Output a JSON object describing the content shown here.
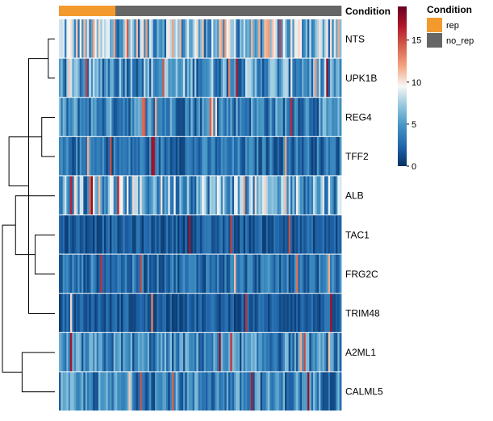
{
  "chart_data": {
    "type": "heatmap",
    "rows": [
      "NTS",
      "UPK1B",
      "REG4",
      "TFF2",
      "ALB",
      "TAC1",
      "FRG2C",
      "TRIM48",
      "A2ML1",
      "CALML5"
    ],
    "annotation": {
      "label": "Condition",
      "groups": [
        {
          "name": "rep",
          "color": "#F39A2F",
          "count": 30
        },
        {
          "name": "no_rep",
          "color": "#666666",
          "count": 120
        }
      ]
    },
    "row_dendrogram": [
      [
        0,
        1
      ],
      [
        2,
        3
      ],
      [
        5,
        6
      ],
      [
        10,
        7
      ],
      [
        8,
        9
      ],
      [
        12,
        4
      ],
      [
        13,
        11
      ],
      [
        14,
        15
      ]
    ],
    "row_mean_values": [
      7,
      5,
      4,
      3,
      6,
      2,
      3,
      2,
      4,
      4
    ],
    "color_scale": {
      "colors": [
        "#053061",
        "#2166AC",
        "#4393C3",
        "#92C5DE",
        "#F7F7F7",
        "#F4A582",
        "#D6604D",
        "#B2182B",
        "#67001F"
      ],
      "min": 0,
      "max": 19,
      "ticks": [
        0,
        5,
        10,
        15
      ]
    },
    "legend": {
      "title": "Condition",
      "items": [
        {
          "label": "rep",
          "color": "#F39A2F"
        },
        {
          "label": "no_rep",
          "color": "#666666"
        }
      ]
    }
  }
}
